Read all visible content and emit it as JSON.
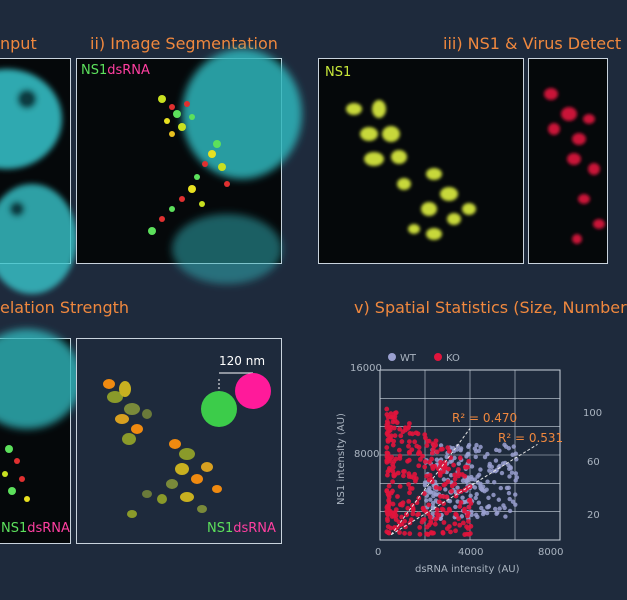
{
  "titles": {
    "i": "nput",
    "ii": "ii) Image Segmentation",
    "iii": "iii) NS1 & Virus Detect",
    "iv": "elation Strength",
    "v": "v) Spatial Statistics  (Size, Number"
  },
  "labels": {
    "ns1": "NS1",
    "dsrna": "dsRNA",
    "scale": "120 nm"
  },
  "colors": {
    "background": "#1e2a3c",
    "title": "#f0883e",
    "cyan": "#37c6cc",
    "green": "#5ce05c",
    "magenta": "#ff3fa0",
    "red": "#e0143c",
    "lime": "#c8e83a",
    "wt": "#9aa0d0",
    "ko": "#e0143c"
  },
  "chart_data": {
    "type": "scatter",
    "xlabel": "dsRNA intensity (AU)",
    "ylabel": "NS1 intensity (AU)",
    "x_ticks": [
      "0",
      "4000",
      "8000"
    ],
    "y_ticks": [
      "16000",
      "8000"
    ],
    "xlim": [
      0,
      8000
    ],
    "ylim": [
      0,
      16000
    ],
    "legend_position": "top-left",
    "grid": true,
    "series": [
      {
        "name": "WT",
        "color": "#9aa0d0",
        "r2_label": "R² = 0.531"
      },
      {
        "name": "KO",
        "color": "#e0143c",
        "r2_label": "R² = 0.470"
      }
    ],
    "right_axis_ticks": [
      "100",
      "60",
      "20"
    ]
  }
}
